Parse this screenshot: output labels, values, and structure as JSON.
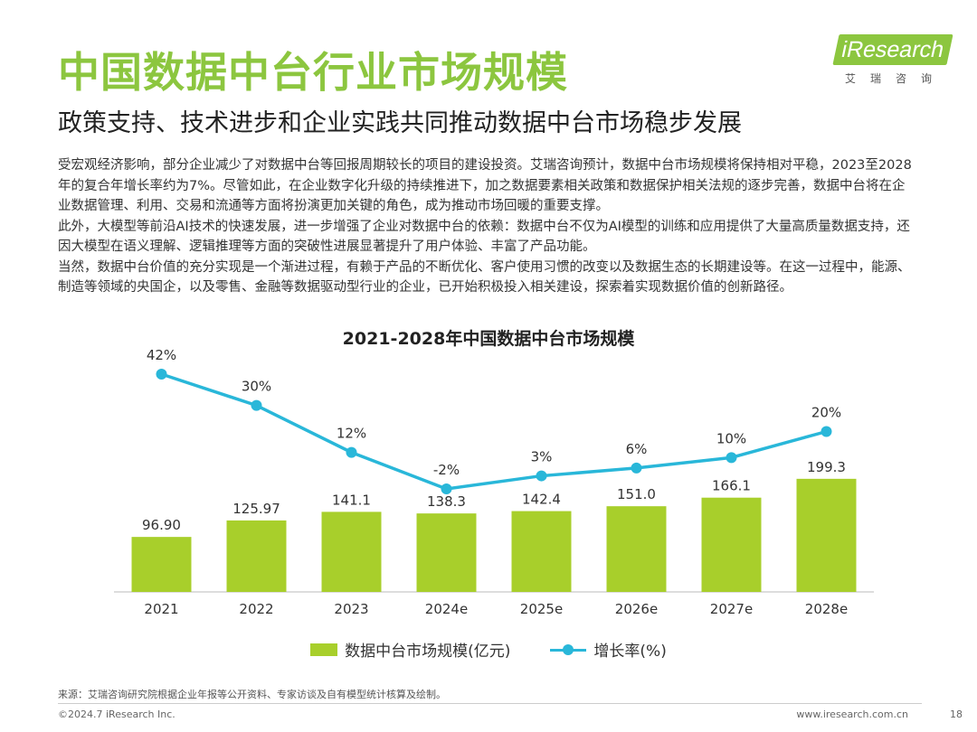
{
  "header": {
    "title": "中国数据中台行业市场规模",
    "subtitle": "政策支持、技术进步和企业实践共同推动数据中台市场稳步发展"
  },
  "logo": {
    "wordmark": "iResearch",
    "sub": "艾瑞咨询"
  },
  "body": {
    "paragraphs": [
      "受宏观经济影响，部分企业减少了对数据中台等回报周期较长的项目的建设投资。艾瑞咨询预计，数据中台市场规模将保持相对平稳，2023至2028年的复合年增长率约为7%。尽管如此，在企业数字化升级的持续推进下，加之数据要素相关政策和数据保护相关法规的逐步完善，数据中台将在企业数据管理、利用、交易和流通等方面将扮演更加关键的角色，成为推动市场回暖的重要支撑。",
      "此外，大模型等前沿AI技术的快速发展，进一步增强了企业对数据中台的依赖：数据中台不仅为AI模型的训练和应用提供了大量高质量数据支持，还因大模型在语义理解、逻辑推理等方面的突破性进展显著提升了用户体验、丰富了产品功能。",
      "当然，数据中台价值的充分实现是一个渐进过程，有赖于产品的不断优化、客户使用习惯的改变以及数据生态的长期建设等。在这一过程中，能源、制造等领域的央国企，以及零售、金融等数据驱动型行业的企业，已开始积极投入相关建设，探索着实现数据价值的创新路径。"
    ]
  },
  "chart_data": {
    "type": "bar",
    "title": "2021-2028年中国数据中台市场规模",
    "categories": [
      "2021",
      "2022",
      "2023",
      "2024e",
      "2025e",
      "2026e",
      "2027e",
      "2028e"
    ],
    "series": [
      {
        "name": "数据中台市场规模(亿元)",
        "type": "bar",
        "values": [
          96.9,
          125.97,
          141.1,
          138.3,
          142.4,
          151.0,
          166.1,
          199.3
        ],
        "labels": [
          "96.90",
          "125.97",
          "141.1",
          "138.3",
          "142.4",
          "151.0",
          "166.1",
          "199.3"
        ]
      },
      {
        "name": "增长率(%)",
        "type": "line",
        "values": [
          42,
          30,
          12,
          -2,
          3,
          6,
          10,
          20
        ],
        "labels": [
          "42%",
          "30%",
          "12%",
          "-2%",
          "3%",
          "6%",
          "10%",
          "20%"
        ]
      }
    ],
    "legend": "bottom-center",
    "grid": false,
    "colors": {
      "bar": "#a8cf2b",
      "line": "#29b7d9"
    }
  },
  "footer": {
    "source": "来源：艾瑞咨询研究院根据企业年报等公开资料、专家访谈及自有模型统计核算及绘制。",
    "copyright": "©2024.7 iResearch Inc.",
    "website": "www.iresearch.com.cn",
    "page": "18"
  },
  "colors": {
    "accent": "#8cc63f"
  }
}
